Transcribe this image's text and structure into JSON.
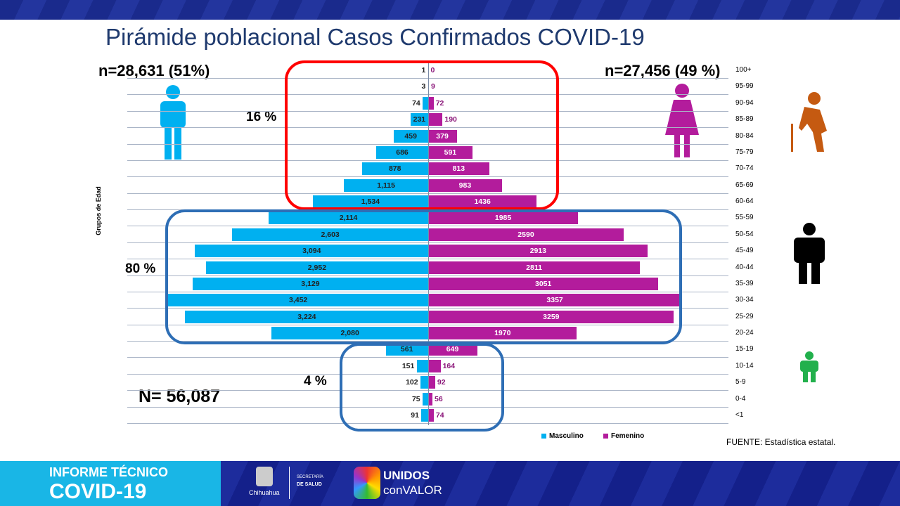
{
  "title": "Pirámide poblacional Casos Confirmados COVID-19",
  "male_total": "n=28,631 (51%)",
  "female_total": "n=27,456 (49 %)",
  "pct_old": "16 %",
  "pct_adult": "80 %",
  "pct_young": "4 %",
  "grand_total": "N= 56,087",
  "source": "FUENTE:  Estadística estatal.",
  "footer": {
    "report_line1": "INFORME TÉCNICO",
    "report_line2": "COVID-19",
    "state": "Chihuahua",
    "dept_line1": "SECRETARÍA",
    "dept_line2": "DE SALUD",
    "slogan1": "UNIDOS",
    "slogan2": "conVALOR"
  },
  "colors": {
    "male": "#00b0f0",
    "female": "#b31c9c",
    "old_box": "#ff0000",
    "adult_box": "#2e6eb5",
    "young_box": "#2e6eb5"
  },
  "chart_data": {
    "type": "bar",
    "orientation": "horizontal population pyramid",
    "ylabel": "Grupos de Edad",
    "categories": [
      "100+",
      "95-99",
      "90-94",
      "85-89",
      "80-84",
      "75-79",
      "70-74",
      "65-69",
      "60-64",
      "55-59",
      "50-54",
      "45-49",
      "40-44",
      "35-39",
      "30-34",
      "25-29",
      "20-24",
      "15-19",
      "10-14",
      "5-9",
      "0-4",
      "<1"
    ],
    "series": [
      {
        "name": "Masculino",
        "labels": [
          "1",
          "3",
          "74",
          "231",
          "459",
          "686",
          "878",
          "1,115",
          "1,534",
          "2,114",
          "2,603",
          "3,094",
          "2,952",
          "3,129",
          "3,452",
          "3,224",
          "2,080",
          "561",
          "151",
          "102",
          "75",
          "91"
        ],
        "values": [
          1,
          3,
          74,
          231,
          459,
          686,
          878,
          1115,
          1534,
          2114,
          2603,
          3094,
          2952,
          3129,
          3452,
          3224,
          2080,
          561,
          151,
          102,
          75,
          91
        ]
      },
      {
        "name": "Femenino",
        "labels": [
          "0",
          "9",
          "72",
          "190",
          "379",
          "591",
          "813",
          "983",
          "1436",
          "1985",
          "2590",
          "2913",
          "2811",
          "3051",
          "3357",
          "3259",
          "1970",
          "649",
          "164",
          "92",
          "56",
          "74"
        ],
        "values": [
          0,
          9,
          72,
          190,
          379,
          591,
          813,
          983,
          1436,
          1985,
          2590,
          2913,
          2811,
          3051,
          3357,
          3259,
          1970,
          649,
          164,
          92,
          56,
          74
        ]
      }
    ],
    "legend": "bottom-right"
  }
}
